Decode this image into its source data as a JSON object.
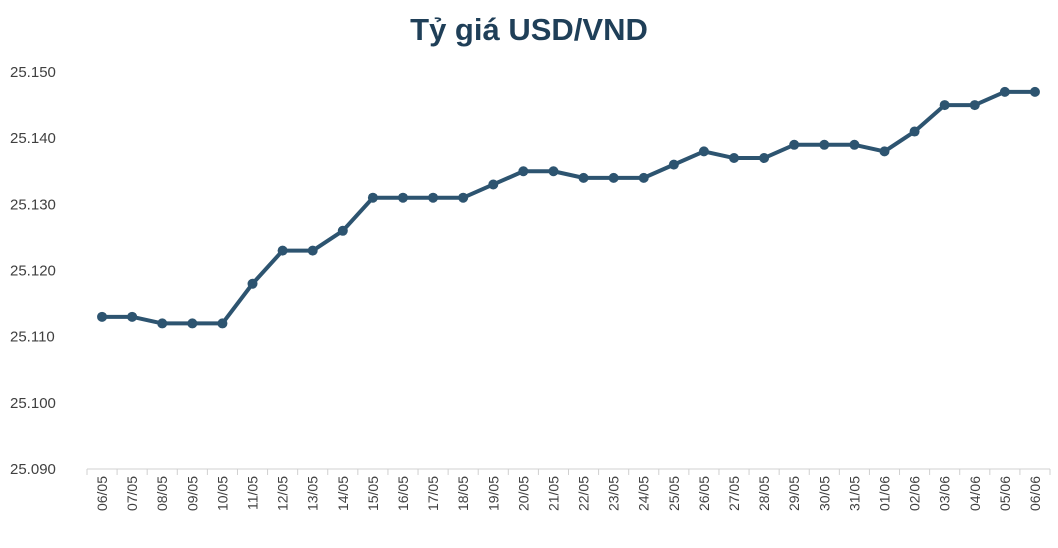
{
  "chart_data": {
    "type": "line",
    "title": "Tỷ giá USD/VND",
    "xlabel": "",
    "ylabel": "",
    "ylim": [
      25090,
      25150
    ],
    "yticks": [
      25090,
      25100,
      25110,
      25120,
      25130,
      25140,
      25150
    ],
    "ytick_labels": [
      "25.090",
      "25.100",
      "25.110",
      "25.120",
      "25.130",
      "25.140",
      "25.150"
    ],
    "grid": false,
    "legend": "none",
    "categories": [
      "06/05",
      "07/05",
      "08/05",
      "09/05",
      "10/05",
      "11/05",
      "12/05",
      "13/05",
      "14/05",
      "15/05",
      "16/05",
      "17/05",
      "18/05",
      "19/05",
      "20/05",
      "21/05",
      "22/05",
      "23/05",
      "24/05",
      "25/05",
      "26/05",
      "27/05",
      "28/05",
      "29/05",
      "30/05",
      "31/05",
      "01/06",
      "02/06",
      "03/06",
      "04/06",
      "05/06",
      "06/06"
    ],
    "series": [
      {
        "color": "#2d5470",
        "values": [
          25113,
          25113,
          25112,
          25112,
          25112,
          25118,
          25123,
          25123,
          25126,
          25131,
          25131,
          25131,
          25131,
          25133,
          25135,
          25135,
          25134,
          25134,
          25134,
          25136,
          25138,
          25137,
          25137,
          25139,
          25139,
          25139,
          25138,
          25141,
          25145,
          25145,
          25147,
          25147
        ]
      }
    ]
  }
}
